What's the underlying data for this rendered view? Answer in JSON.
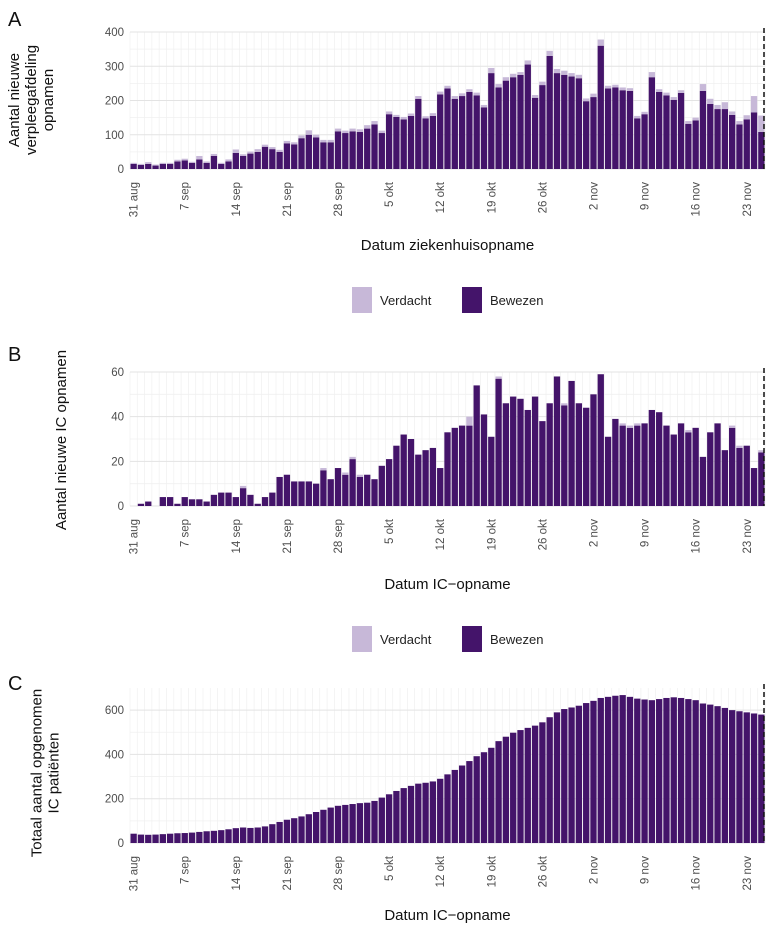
{
  "colors": {
    "bewezen": "#44146a",
    "verdacht": "#c7b8d8",
    "grid_major": "#e3e3e3",
    "grid_minor": "#f0f0f0",
    "dashed_line": "#111111"
  },
  "x_tick_labels": [
    "31 aug",
    "7 sep",
    "14 sep",
    "21 sep",
    "28 sep",
    "5 okt",
    "12 okt",
    "19 okt",
    "26 okt",
    "2 nov",
    "9 nov",
    "16 nov",
    "23 nov"
  ],
  "chart_data": [
    {
      "type": "bar",
      "panel_label": "A",
      "stacked": true,
      "x_start_date": "31 aug",
      "x_ticks": [
        "31 aug",
        "7 sep",
        "14 sep",
        "21 sep",
        "28 sep",
        "5 okt",
        "12 okt",
        "19 okt",
        "26 okt",
        "2 nov",
        "9 nov",
        "16 nov",
        "23 nov"
      ],
      "xlabel": "Datum ziekenhuisopname",
      "ylabel": [
        "Aantal nieuwe",
        "verpleegafdeling",
        "opnamen"
      ],
      "ylim": [
        0,
        400
      ],
      "y_ticks": [
        0,
        100,
        200,
        300,
        400
      ],
      "series": [
        {
          "name": "Bewezen",
          "values": [
            15,
            12,
            15,
            10,
            15,
            15,
            22,
            25,
            18,
            28,
            18,
            38,
            15,
            22,
            47,
            38,
            45,
            50,
            65,
            58,
            50,
            75,
            72,
            90,
            100,
            92,
            78,
            78,
            110,
            105,
            110,
            108,
            118,
            130,
            105,
            160,
            152,
            145,
            155,
            205,
            148,
            155,
            218,
            235,
            205,
            213,
            225,
            215,
            180,
            280,
            238,
            258,
            268,
            275,
            305,
            208,
            245,
            330,
            280,
            275,
            270,
            265,
            198,
            210,
            360,
            235,
            238,
            230,
            228,
            148,
            160,
            268,
            225,
            215,
            202,
            222,
            132,
            142,
            228,
            190,
            175,
            175,
            158,
            130,
            145,
            165,
            108
          ],
          "name_shown": true
        },
        {
          "name": "Verdacht",
          "values": [
            3,
            3,
            5,
            3,
            3,
            3,
            5,
            5,
            3,
            10,
            4,
            6,
            3,
            6,
            10,
            5,
            6,
            8,
            6,
            6,
            6,
            7,
            6,
            8,
            13,
            8,
            7,
            7,
            8,
            7,
            8,
            8,
            10,
            10,
            7,
            8,
            6,
            7,
            7,
            8,
            6,
            8,
            8,
            8,
            8,
            8,
            8,
            8,
            7,
            15,
            10,
            10,
            10,
            8,
            12,
            8,
            10,
            15,
            12,
            12,
            10,
            10,
            8,
            10,
            18,
            8,
            8,
            8,
            8,
            7,
            7,
            15,
            8,
            8,
            8,
            8,
            8,
            8,
            20,
            15,
            12,
            20,
            10,
            10,
            12,
            48,
            48
          ]
        }
      ],
      "legend": {
        "position": "bottom",
        "entries": [
          "Verdacht",
          "Bewezen"
        ]
      },
      "reference_line": "dashed vertical line at latest date",
      "grid": true
    },
    {
      "type": "bar",
      "panel_label": "B",
      "stacked": true,
      "x_start_date": "31 aug",
      "x_ticks": [
        "31 aug",
        "7 sep",
        "14 sep",
        "21 sep",
        "28 sep",
        "5 okt",
        "12 okt",
        "19 okt",
        "26 okt",
        "2 nov",
        "9 nov",
        "16 nov",
        "23 nov"
      ],
      "xlabel": "Datum IC−opname",
      "ylabel": [
        "Aantal nieuwe IC opnamen"
      ],
      "ylim": [
        0,
        60
      ],
      "y_ticks": [
        0,
        20,
        40,
        60
      ],
      "series": [
        {
          "name": "Bewezen",
          "values": [
            0,
            1,
            2,
            0,
            4,
            4,
            1,
            4,
            3,
            3,
            2,
            5,
            6,
            6,
            4,
            8,
            5,
            1,
            4,
            6,
            13,
            14,
            11,
            11,
            11,
            10,
            16,
            12,
            17,
            14,
            21,
            13,
            14,
            12,
            18,
            21,
            27,
            32,
            30,
            23,
            25,
            26,
            17,
            33,
            35,
            36,
            36,
            54,
            41,
            31,
            57,
            46,
            49,
            48,
            43,
            49,
            38,
            46,
            58,
            45,
            56,
            46,
            44,
            50,
            59,
            31,
            39,
            36,
            35,
            36,
            37,
            43,
            42,
            36,
            32,
            37,
            33,
            35,
            22,
            33,
            37,
            25,
            35,
            26,
            27,
            17,
            24,
            23,
            30,
            22
          ],
          "name_shown": true
        },
        {
          "name": "Verdacht",
          "values": [
            0,
            0,
            0,
            0,
            0,
            0,
            0,
            0,
            0,
            0,
            0,
            0,
            0,
            0,
            0,
            1,
            0,
            0,
            0,
            0,
            0,
            0,
            0,
            0,
            0,
            0,
            1,
            0,
            0,
            1,
            1,
            1,
            0,
            0,
            0,
            0,
            0,
            0,
            0,
            0,
            0,
            0,
            0,
            0,
            0,
            0,
            4,
            0,
            0,
            0,
            1,
            0,
            0,
            0,
            0,
            0,
            0,
            0,
            0,
            1,
            0,
            0,
            0,
            0,
            0,
            0,
            0,
            1,
            1,
            1,
            0,
            0,
            0,
            0,
            0,
            0,
            1,
            0,
            0,
            0,
            0,
            0,
            1,
            1,
            0,
            0,
            1,
            1,
            0,
            0
          ]
        }
      ],
      "legend": {
        "position": "bottom",
        "entries": [
          "Verdacht",
          "Bewezen"
        ]
      },
      "reference_line": "dashed vertical line at latest date",
      "grid": true
    },
    {
      "type": "bar",
      "panel_label": "C",
      "stacked": false,
      "x_start_date": "31 aug",
      "x_ticks": [
        "31 aug",
        "7 sep",
        "14 sep",
        "21 sep",
        "28 sep",
        "5 okt",
        "12 okt",
        "19 okt",
        "26 okt",
        "2 nov",
        "9 nov",
        "16 nov",
        "23 nov"
      ],
      "xlabel": "Datum IC−opname",
      "ylabel": [
        "Totaal aantal opgenomen",
        "IC patiënten"
      ],
      "ylim": [
        0,
        700
      ],
      "y_ticks": [
        0,
        200,
        400,
        600
      ],
      "series": [
        {
          "name": "Bewezen",
          "values": [
            42,
            38,
            37,
            38,
            40,
            42,
            44,
            45,
            47,
            50,
            53,
            55,
            58,
            62,
            67,
            70,
            68,
            70,
            75,
            85,
            95,
            105,
            112,
            120,
            130,
            140,
            150,
            160,
            168,
            172,
            176,
            180,
            182,
            190,
            205,
            220,
            235,
            248,
            258,
            268,
            272,
            278,
            290,
            310,
            330,
            350,
            370,
            392,
            410,
            430,
            460,
            480,
            498,
            510,
            520,
            530,
            545,
            568,
            590,
            605,
            612,
            620,
            632,
            642,
            655,
            660,
            665,
            668,
            660,
            652,
            648,
            645,
            650,
            655,
            658,
            655,
            650,
            645,
            630,
            625,
            618,
            610,
            600,
            595,
            590,
            585,
            580,
            575,
            570,
            565
          ]
        }
      ],
      "reference_line": "dashed vertical line at latest date",
      "grid": true
    }
  ]
}
